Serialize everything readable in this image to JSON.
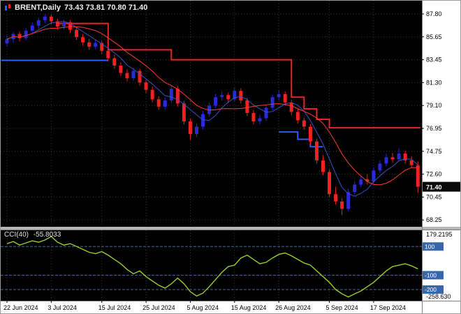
{
  "header": {
    "symbol": "BRENT,Daily",
    "ohlc": "73.43 73.81 70.80 71.40"
  },
  "indicator": {
    "name": "CCI(40)",
    "value": "-55.8033"
  },
  "chart_data": {
    "type": "candlestick",
    "title": "BRENT,Daily",
    "current_price": "71.40",
    "price_axis": [
      "87.80",
      "85.65",
      "83.45",
      "81.30",
      "79.10",
      "76.95",
      "74.75",
      "72.60",
      "70.45",
      "68.25"
    ],
    "x_labels": [
      {
        "label": "22 Jun 2024",
        "index": 0
      },
      {
        "label": "3 Jul 2024",
        "index": 7
      },
      {
        "label": "15 Jul 2024",
        "index": 15
      },
      {
        "label": "25 Jul 2024",
        "index": 22
      },
      {
        "label": "5 Aug 2024",
        "index": 29
      },
      {
        "label": "15 Aug 2024",
        "index": 36
      },
      {
        "label": "26 Aug 2024",
        "index": 43
      },
      {
        "label": "5 Sep 2024",
        "index": 51
      },
      {
        "label": "17 Sep 2024",
        "index": 58
      }
    ],
    "ma_fast_period": 5,
    "ma_slow_period": 10,
    "candles": [
      [
        85.0,
        85.75,
        84.7,
        85.4
      ],
      [
        85.4,
        86.1,
        85.05,
        85.9
      ],
      [
        85.9,
        86.15,
        85.2,
        85.5
      ],
      [
        85.5,
        86.45,
        85.3,
        86.2
      ],
      [
        86.2,
        87.0,
        85.95,
        86.7
      ],
      [
        86.7,
        87.45,
        86.4,
        87.2
      ],
      [
        87.2,
        87.8,
        86.9,
        87.55
      ],
      [
        87.55,
        87.75,
        86.8,
        87.1
      ],
      [
        87.1,
        87.35,
        86.3,
        86.6
      ],
      [
        86.6,
        87.25,
        86.35,
        87.0
      ],
      [
        87.0,
        87.2,
        86.0,
        86.3
      ],
      [
        86.3,
        86.55,
        85.35,
        85.6
      ],
      [
        85.6,
        85.9,
        84.8,
        85.1
      ],
      [
        85.1,
        85.45,
        84.4,
        84.7
      ],
      [
        84.7,
        85.35,
        84.45,
        85.05
      ],
      [
        85.05,
        85.25,
        84.0,
        84.3
      ],
      [
        84.3,
        84.6,
        83.3,
        83.6
      ],
      [
        83.6,
        83.95,
        82.6,
        82.9
      ],
      [
        82.9,
        83.2,
        81.9,
        82.2
      ],
      [
        82.2,
        82.55,
        81.4,
        81.7
      ],
      [
        81.7,
        82.7,
        81.45,
        82.4
      ],
      [
        82.4,
        82.6,
        81.0,
        81.3
      ],
      [
        81.3,
        81.55,
        80.3,
        80.6
      ],
      [
        80.6,
        80.9,
        79.4,
        79.7
      ],
      [
        79.7,
        80.0,
        78.7,
        79.0
      ],
      [
        79.0,
        79.9,
        78.75,
        79.6
      ],
      [
        79.6,
        81.0,
        79.35,
        80.7
      ],
      [
        80.7,
        80.95,
        79.0,
        79.3
      ],
      [
        79.3,
        79.55,
        77.3,
        77.6
      ],
      [
        77.6,
        77.85,
        75.85,
        76.4
      ],
      [
        76.4,
        77.4,
        76.1,
        77.1
      ],
      [
        77.1,
        78.6,
        76.85,
        78.3
      ],
      [
        78.3,
        79.4,
        78.05,
        79.1
      ],
      [
        79.1,
        80.2,
        78.85,
        79.9
      ],
      [
        79.9,
        80.45,
        79.55,
        80.1
      ],
      [
        80.1,
        80.35,
        79.35,
        79.7
      ],
      [
        79.7,
        80.85,
        79.45,
        80.5
      ],
      [
        80.5,
        80.75,
        79.3,
        79.6
      ],
      [
        79.6,
        79.85,
        78.1,
        78.4
      ],
      [
        78.4,
        78.7,
        77.3,
        77.6
      ],
      [
        77.6,
        78.25,
        77.3,
        77.9
      ],
      [
        77.9,
        79.15,
        77.65,
        78.9
      ],
      [
        78.9,
        80.15,
        78.65,
        79.9
      ],
      [
        79.9,
        80.55,
        79.6,
        80.2
      ],
      [
        80.2,
        80.45,
        79.1,
        79.4
      ],
      [
        79.4,
        79.65,
        78.2,
        78.5
      ],
      [
        78.5,
        78.8,
        77.4,
        77.7
      ],
      [
        77.7,
        77.95,
        76.8,
        77.1
      ],
      [
        77.1,
        77.35,
        75.4,
        75.7
      ],
      [
        75.7,
        75.95,
        73.6,
        73.9
      ],
      [
        73.9,
        74.4,
        72.5,
        72.8
      ],
      [
        72.8,
        73.05,
        70.4,
        70.7
      ],
      [
        70.7,
        71.4,
        69.7,
        70.0
      ],
      [
        70.0,
        70.3,
        68.7,
        69.3
      ],
      [
        69.3,
        71.2,
        69.1,
        70.9
      ],
      [
        70.9,
        71.95,
        70.65,
        71.6
      ],
      [
        71.6,
        72.45,
        71.35,
        72.1
      ],
      [
        72.1,
        72.6,
        71.6,
        71.9
      ],
      [
        71.9,
        73.25,
        71.65,
        72.95
      ],
      [
        72.95,
        73.9,
        72.7,
        73.6
      ],
      [
        73.6,
        74.55,
        73.35,
        74.2
      ],
      [
        74.2,
        74.6,
        73.7,
        74.0
      ],
      [
        74.0,
        75.05,
        73.8,
        74.55
      ],
      [
        74.55,
        74.85,
        73.6,
        73.9
      ],
      [
        73.9,
        74.3,
        73.2,
        73.45
      ],
      [
        73.43,
        73.81,
        70.8,
        71.4
      ]
    ],
    "red_channel": [
      [
        8,
        16,
        86.9
      ],
      [
        16,
        26,
        84.4
      ],
      [
        26,
        45,
        83.45
      ],
      [
        45,
        47,
        79.9
      ],
      [
        47,
        49,
        78.8
      ],
      [
        49,
        51,
        77.8
      ],
      [
        51,
        65,
        77.0
      ]
    ],
    "blue_channel": [
      [
        0,
        16,
        83.4
      ],
      [
        43,
        46,
        76.6
      ],
      [
        46,
        48,
        75.9
      ],
      [
        48,
        50,
        75.2
      ]
    ],
    "cci": {
      "label": "CCI(40)",
      "current": "-55.8033",
      "max_label": "179.2195",
      "min_label": "-258.630",
      "levels": [
        100,
        -100,
        -200
      ],
      "values": [
        120,
        135,
        110,
        125,
        140,
        130,
        145,
        170,
        130,
        110,
        120,
        100,
        80,
        60,
        50,
        65,
        40,
        10,
        -20,
        -60,
        -90,
        -70,
        -110,
        -140,
        -170,
        -190,
        -160,
        -120,
        -160,
        -215,
        -245,
        -225,
        -180,
        -130,
        -80,
        -40,
        -30,
        20,
        40,
        10,
        -20,
        -10,
        20,
        45,
        55,
        35,
        10,
        -15,
        -30,
        -70,
        -110,
        -150,
        -200,
        -230,
        -252,
        -230,
        -210,
        -180,
        -150,
        -110,
        -70,
        -40,
        -30,
        -20,
        -35,
        -55.8
      ]
    },
    "colors": {
      "bull": "#2a2ad7",
      "bear": "#ee2222",
      "ma_fast": "#3d52c4",
      "ma_slow": "#ff3b30",
      "channel_red": "#e62626",
      "channel_blue": "#2a5cff",
      "cci_line": "#9acd32",
      "grid": "#3a3a3a",
      "level": "#4a6a96",
      "badge_price_bg": "#0a0a0a",
      "badge_level_bg": "#3767a9",
      "axis_text": "#000000"
    }
  }
}
